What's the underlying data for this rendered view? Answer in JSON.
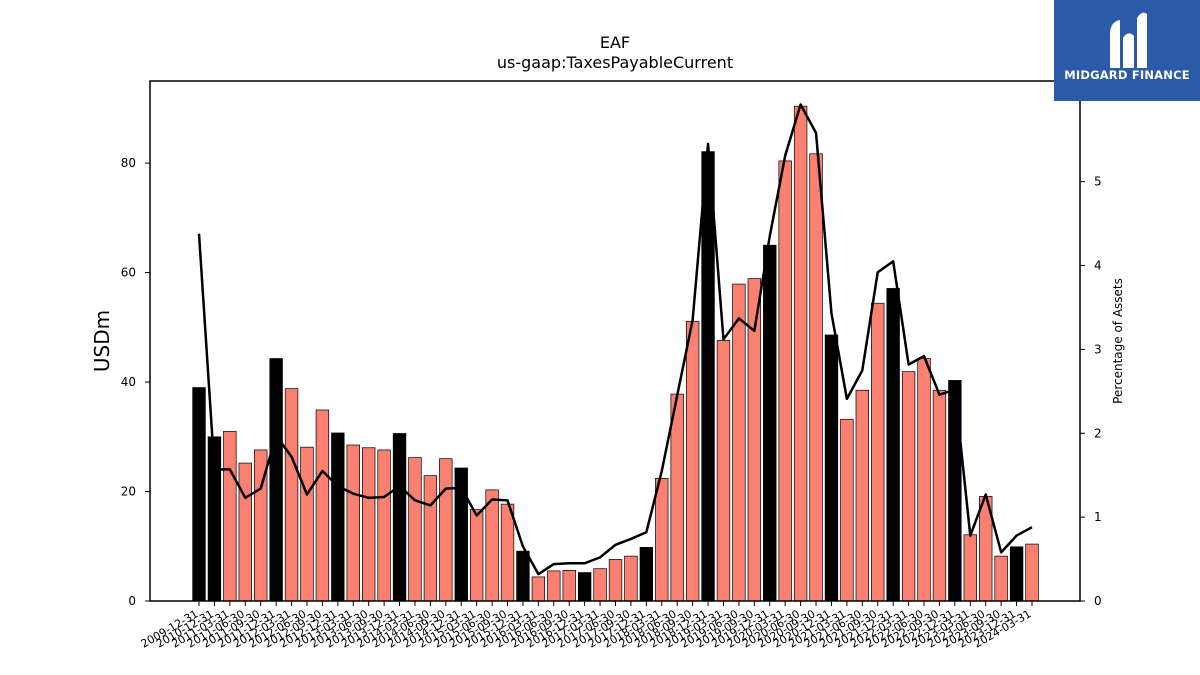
{
  "logo": {
    "text": "MIDGARD FINANCE",
    "icon": "midgard-finance-logo-mark"
  },
  "chart_data": {
    "type": "bar",
    "title": "EAF",
    "subtitle": "us-gaap:TaxesPayableCurrent",
    "ylabel": "USDm",
    "y2label": "Percentage of Assets",
    "ylim": [
      0,
      95
    ],
    "y2lim": [
      0,
      6.2
    ],
    "yticks": [
      0,
      20,
      40,
      60,
      80
    ],
    "y2ticks": [
      0,
      1,
      2,
      3,
      4,
      5
    ],
    "grid": false,
    "colors": {
      "annual_bar": "#000000",
      "quarter_bar": "#fa8072",
      "line": "#000000"
    },
    "categories": [
      "2009-12-31",
      "2010-12-31",
      "2011-03-31",
      "2011-06-30",
      "2011-09-30",
      "2011-12-31",
      "2012-03-31",
      "2012-06-30",
      "2012-09-30",
      "2012-12-31",
      "2013-03-31",
      "2013-06-30",
      "2013-09-30",
      "2013-12-31",
      "2014-03-31",
      "2014-06-30",
      "2014-09-30",
      "2014-12-31",
      "2015-03-31",
      "2015-06-30",
      "2015-09-30",
      "2015-12-31",
      "2016-03-31",
      "2016-06-30",
      "2016-09-30",
      "2016-12-31",
      "2017-03-31",
      "2017-06-30",
      "2017-09-30",
      "2017-12-31",
      "2018-03-31",
      "2018-06-30",
      "2018-09-30",
      "2018-12-31",
      "2019-03-31",
      "2019-06-30",
      "2019-09-30",
      "2019-12-31",
      "2020-03-31",
      "2020-06-30",
      "2020-09-30",
      "2020-12-31",
      "2021-03-31",
      "2021-06-30",
      "2021-09-30",
      "2021-12-31",
      "2022-03-31",
      "2022-06-30",
      "2022-09-30",
      "2022-12-31",
      "2023-03-31",
      "2023-06-30",
      "2023-09-30",
      "2023-12-31",
      "2024-03-31"
    ],
    "series": [
      {
        "axis": "left",
        "values": [
          39.0,
          30.0,
          31.0,
          25.2,
          27.6,
          44.3,
          38.8,
          28.1,
          34.9,
          30.7,
          28.5,
          28.0,
          27.6,
          30.6,
          26.2,
          22.9,
          26.0,
          24.3,
          16.7,
          20.3,
          17.7,
          9.1,
          4.4,
          5.5,
          5.6,
          5.2,
          5.9,
          7.6,
          8.2,
          9.8,
          22.4,
          37.8,
          51.1,
          82.1,
          47.6,
          57.9,
          58.9,
          65.0,
          80.4,
          90.4,
          81.7,
          48.6,
          33.2,
          38.5,
          54.4,
          57.1,
          41.9,
          44.3,
          38.5,
          40.3,
          12.1,
          19.1,
          8.2,
          9.9,
          10.4
        ],
        "annual_flags": [
          1,
          1,
          0,
          0,
          0,
          1,
          0,
          0,
          0,
          1,
          0,
          0,
          0,
          1,
          0,
          0,
          0,
          1,
          0,
          0,
          0,
          1,
          0,
          0,
          0,
          1,
          0,
          0,
          0,
          1,
          0,
          0,
          0,
          1,
          0,
          0,
          0,
          1,
          0,
          0,
          0,
          1,
          0,
          0,
          0,
          1,
          0,
          0,
          0,
          1,
          0,
          0,
          0,
          1,
          0
        ]
      },
      {
        "axis": "right",
        "values": [
          4.38,
          1.57,
          1.57,
          1.23,
          1.34,
          1.97,
          1.72,
          1.27,
          1.55,
          1.37,
          1.28,
          1.23,
          1.24,
          1.37,
          1.2,
          1.14,
          1.34,
          1.35,
          1.02,
          1.21,
          1.2,
          0.65,
          0.32,
          0.44,
          0.45,
          0.45,
          0.52,
          0.67,
          0.74,
          0.82,
          1.55,
          2.45,
          3.35,
          5.45,
          3.12,
          3.37,
          3.22,
          4.35,
          5.31,
          5.92,
          5.58,
          3.43,
          2.41,
          2.75,
          3.92,
          4.05,
          2.82,
          2.92,
          2.46,
          2.52,
          0.78,
          1.27,
          0.58,
          0.78,
          0.88
        ]
      }
    ]
  }
}
